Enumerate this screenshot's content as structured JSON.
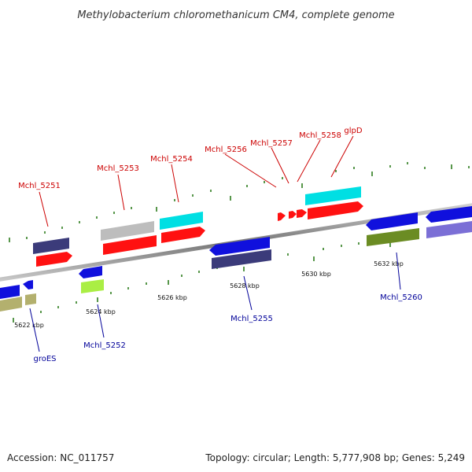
{
  "title": "Methylobacterium chloromethanicum CM4, complete genome",
  "footer": {
    "accession": "Accession: NC_011757",
    "summary": "Topology: circular; Length: 5,777,908 bp; Genes: 5,249"
  },
  "colors": {
    "backbone": "#8c8c8c",
    "tick_marks": "#2e7d1e",
    "label_forward": "#cc0000",
    "label_reverse": "#000099"
  },
  "scale_ticks": [
    "5622 kbp",
    "5624 kbp",
    "5626 kbp",
    "5628 kbp",
    "5630 kbp",
    "5632 kbp"
  ],
  "gene_labels": [
    {
      "text": "Mchl_5251",
      "strand": "forward"
    },
    {
      "text": "Mchl_5253",
      "strand": "forward"
    },
    {
      "text": "Mchl_5254",
      "strand": "forward"
    },
    {
      "text": "Mchl_5256",
      "strand": "forward"
    },
    {
      "text": "Mchl_5257",
      "strand": "forward"
    },
    {
      "text": "Mchl_5258",
      "strand": "forward"
    },
    {
      "text": "glpD",
      "strand": "forward"
    },
    {
      "text": "groES",
      "strand": "reverse"
    },
    {
      "text": "Mchl_5252",
      "strand": "reverse"
    },
    {
      "text": "Mchl_5255",
      "strand": "reverse"
    },
    {
      "text": "Mchl_5260",
      "strand": "reverse"
    }
  ]
}
